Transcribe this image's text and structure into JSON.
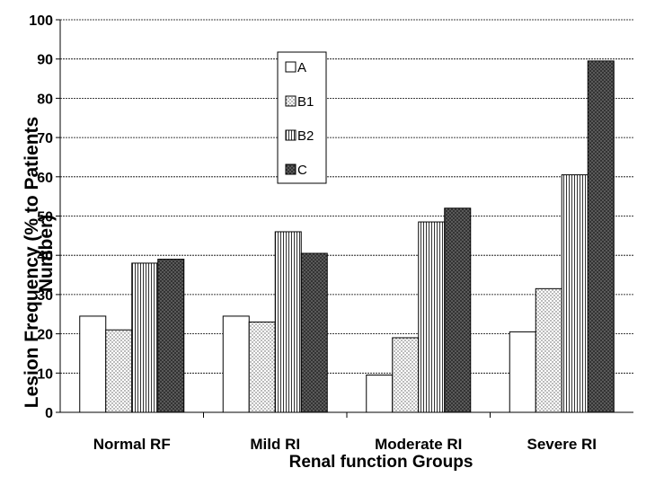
{
  "chart_data": {
    "type": "bar",
    "xlabel": "Renal function  Groups",
    "ylabel_line1": "Lesion Frequency (%  to Patients",
    "ylabel_line2": "Number)",
    "categories": [
      "Normal RF",
      "Mild RI",
      "Moderate RI",
      "Severe RI"
    ],
    "series": [
      {
        "name": "A",
        "values": [
          24.5,
          24.5,
          9.5,
          20.5
        ],
        "fill": "#ffffff"
      },
      {
        "name": "B1",
        "values": [
          21,
          23,
          19,
          31.5
        ],
        "fill": "dots-light"
      },
      {
        "name": "B2",
        "values": [
          38,
          46,
          48.5,
          60.5
        ],
        "fill": "vstripes"
      },
      {
        "name": "C",
        "values": [
          39,
          40.5,
          52,
          89.5
        ],
        "fill": "dots-dark"
      }
    ],
    "ylim": [
      0,
      100
    ],
    "yticks": [
      0,
      10,
      20,
      30,
      40,
      50,
      60,
      70,
      80,
      90,
      100
    ],
    "grid": true,
    "legend_position": "inside-top-center"
  }
}
